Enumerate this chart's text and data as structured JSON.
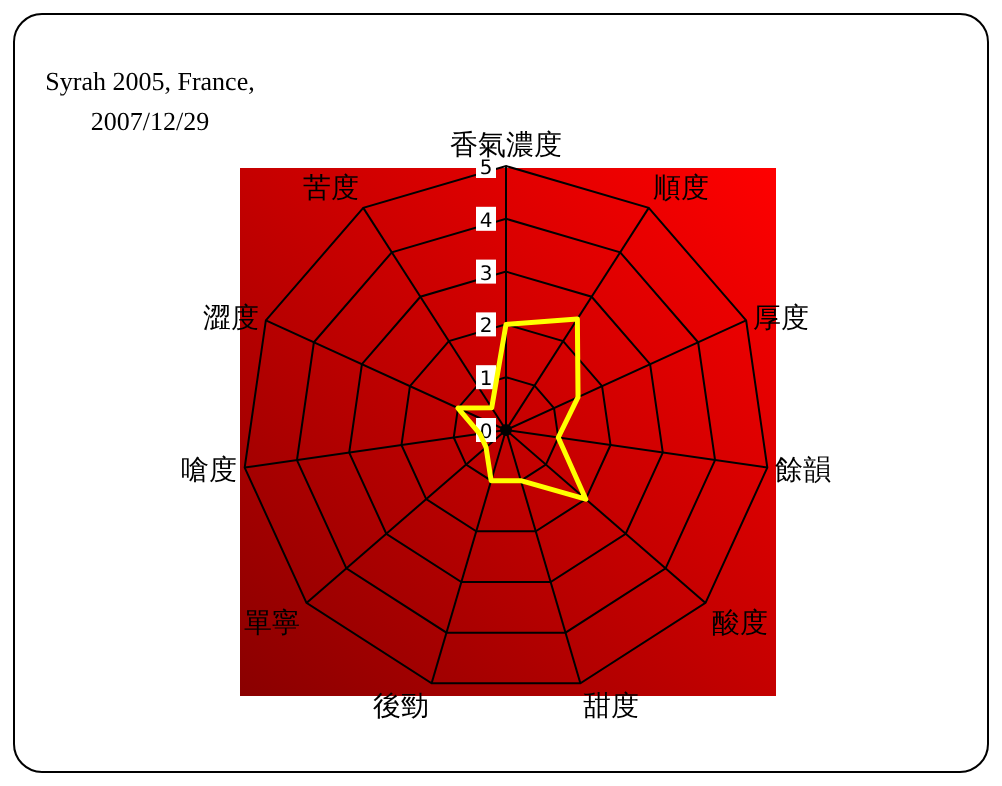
{
  "chart_data": {
    "type": "radar",
    "title": "Syrah 2005, France, 2007/12/29",
    "categories": [
      "香氣濃度",
      "順度",
      "厚度",
      "餘韻",
      "酸度",
      "甜度",
      "後勁",
      "單寧",
      "嗆度",
      "澀度",
      "苦度"
    ],
    "series": [
      {
        "color": "#ffff00",
        "values": [
          2,
          2.5,
          1.5,
          1,
          2,
          1,
          1,
          0.5,
          0.5,
          1,
          0.5
        ]
      }
    ],
    "ylim": [
      0,
      5
    ],
    "yticks": [
      0,
      1,
      2,
      3,
      4,
      5
    ],
    "grid": true,
    "marker": "none",
    "line_style": "solid"
  }
}
